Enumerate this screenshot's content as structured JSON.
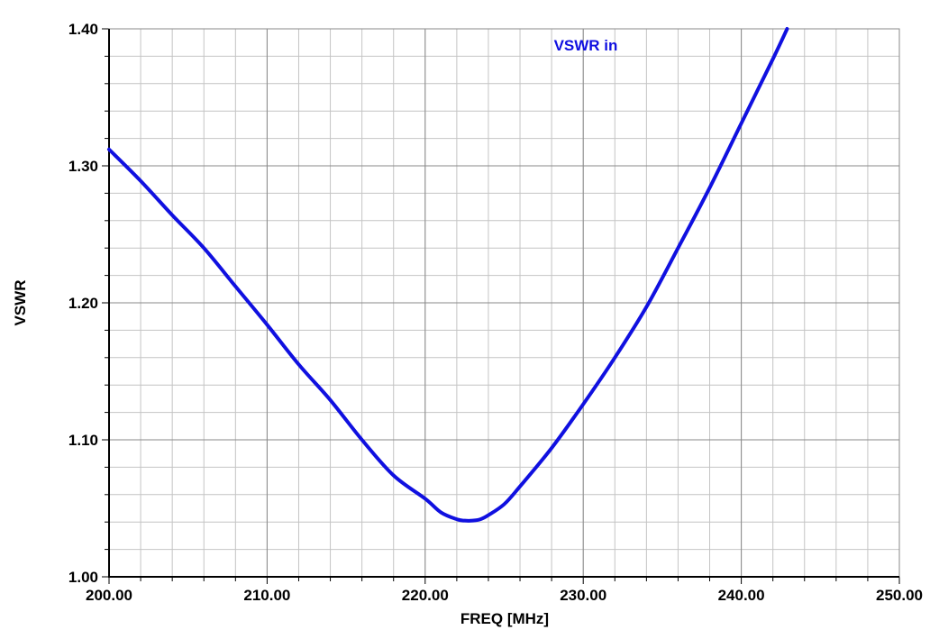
{
  "chart_data": {
    "type": "line",
    "title": "",
    "xlabel": "FREQ [MHz]",
    "ylabel": "VSWR",
    "xlim": [
      200,
      250
    ],
    "ylim": [
      1.0,
      1.4
    ],
    "grid": true,
    "legend_placement": "top-center",
    "x_ticks": [
      200,
      210,
      220,
      230,
      240,
      250
    ],
    "x_tick_labels": [
      "200.00",
      "210.00",
      "220.00",
      "230.00",
      "240.00",
      "250.00"
    ],
    "y_ticks": [
      1.0,
      1.1,
      1.2,
      1.3,
      1.4
    ],
    "y_tick_labels": [
      "1.00",
      "1.10",
      "1.20",
      "1.30",
      "1.40"
    ],
    "series": [
      {
        "name": "VSWR in",
        "color": "#1010e0",
        "x": [
          200,
          202,
          204,
          206,
          208,
          210,
          212,
          214,
          216,
          218,
          220,
          221,
          222,
          222.5,
          223,
          223.5,
          224,
          225,
          226,
          228,
          230,
          232,
          234,
          236,
          238,
          240,
          242,
          242.9
        ],
        "y": [
          1.312,
          1.289,
          1.264,
          1.24,
          1.212,
          1.184,
          1.155,
          1.129,
          1.1,
          1.074,
          1.057,
          1.047,
          1.042,
          1.041,
          1.041,
          1.042,
          1.045,
          1.053,
          1.066,
          1.094,
          1.126,
          1.16,
          1.197,
          1.24,
          1.284,
          1.331,
          1.378,
          1.4
        ]
      }
    ]
  }
}
